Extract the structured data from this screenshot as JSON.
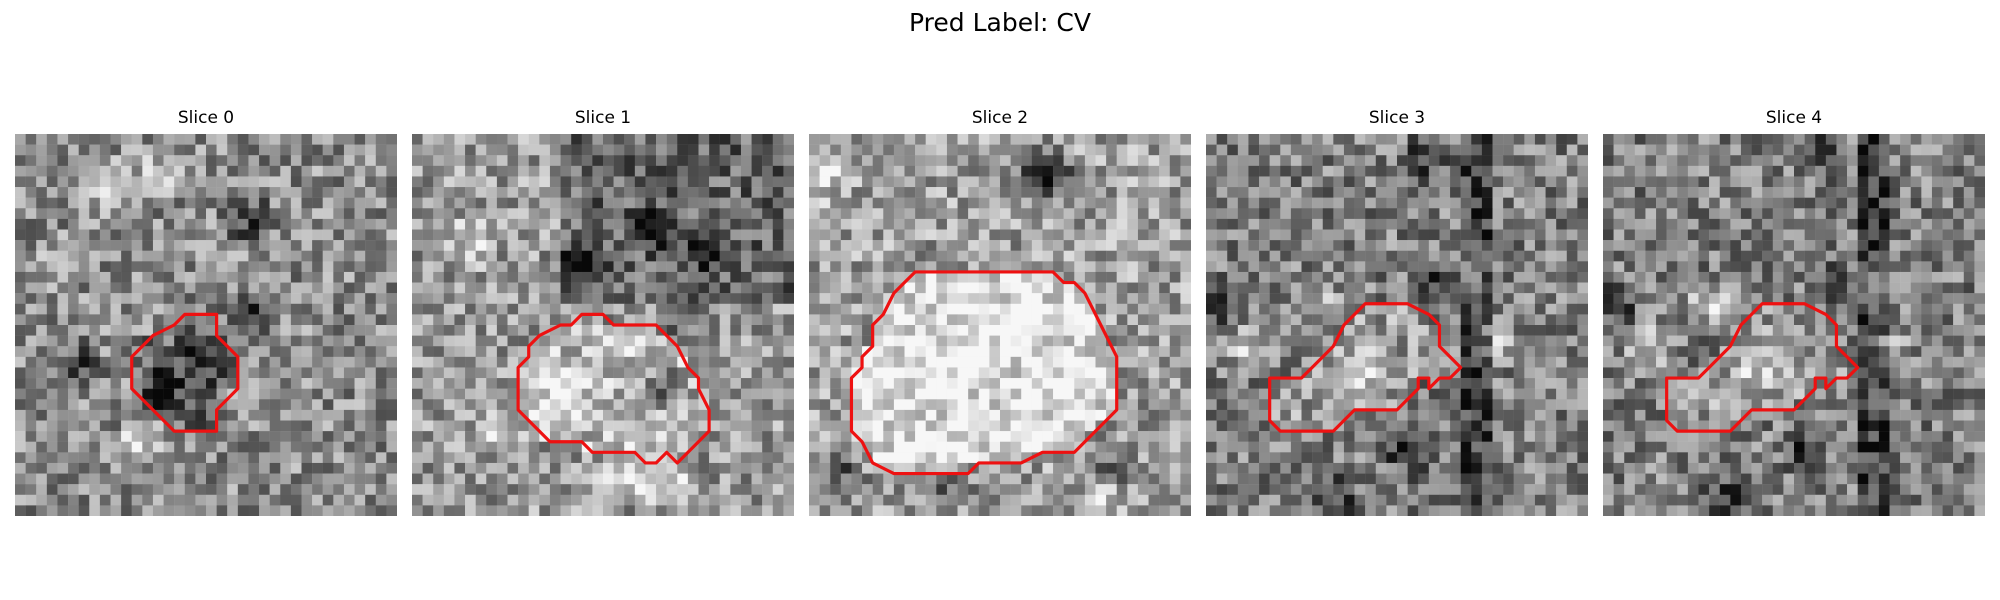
{
  "figure": {
    "title": "Pred Label: CV"
  },
  "slices": [
    {
      "title": "Slice 0",
      "contour": [
        [
          19,
          17
        ],
        [
          19,
          17
        ],
        [
          19,
          19
        ],
        [
          21,
          21
        ],
        [
          21,
          24
        ],
        [
          19,
          26
        ],
        [
          19,
          28
        ],
        [
          15,
          28
        ],
        [
          12,
          25
        ],
        [
          11,
          24
        ],
        [
          11,
          21
        ],
        [
          13,
          19
        ],
        [
          15,
          18
        ],
        [
          16,
          17
        ]
      ],
      "dark_spots": [
        [
          18,
          21
        ],
        [
          22,
          17
        ],
        [
          14,
          24
        ],
        [
          6,
          22
        ],
        [
          22,
          8
        ]
      ],
      "light_spots": [
        [
          9,
          5
        ],
        [
          5,
          12
        ],
        [
          22,
          24
        ],
        [
          12,
          29
        ],
        [
          14,
          4
        ]
      ],
      "base": 0.55
    },
    {
      "title": "Slice 1",
      "contour": [
        [
          18,
          17
        ],
        [
          19,
          18
        ],
        [
          23,
          18
        ],
        [
          25,
          20
        ],
        [
          26,
          22
        ],
        [
          27,
          23
        ],
        [
          27,
          24
        ],
        [
          28,
          26
        ],
        [
          28,
          28
        ],
        [
          27,
          29
        ],
        [
          26,
          30
        ],
        [
          25,
          31
        ],
        [
          24,
          30
        ],
        [
          23,
          31
        ],
        [
          22,
          31
        ],
        [
          21,
          30
        ],
        [
          17,
          30
        ],
        [
          16,
          29
        ],
        [
          13,
          29
        ],
        [
          12,
          28
        ],
        [
          11,
          27
        ],
        [
          10,
          26
        ],
        [
          10,
          24
        ],
        [
          10,
          22
        ],
        [
          11,
          21
        ],
        [
          11,
          20
        ],
        [
          12,
          19
        ],
        [
          14,
          18
        ],
        [
          15,
          18
        ],
        [
          16,
          17
        ],
        [
          17,
          17
        ]
      ],
      "dark_spots": [
        [
          23,
          9
        ],
        [
          25,
          17
        ],
        [
          24,
          24
        ],
        [
          28,
          11
        ],
        [
          16,
          12
        ]
      ],
      "light_spots": [
        [
          14,
          25
        ],
        [
          6,
          10
        ],
        [
          20,
          32
        ],
        [
          8,
          28
        ],
        [
          24,
          33
        ]
      ],
      "base": 0.6
    },
    {
      "title": "Slice 2",
      "contour": [
        [
          10,
          13
        ],
        [
          23,
          13
        ],
        [
          24,
          14
        ],
        [
          25,
          14
        ],
        [
          26,
          15
        ],
        [
          27,
          17
        ],
        [
          28,
          19
        ],
        [
          29,
          21
        ],
        [
          29,
          24
        ],
        [
          29,
          26
        ],
        [
          28,
          27
        ],
        [
          27,
          28
        ],
        [
          25,
          30
        ],
        [
          22,
          30
        ],
        [
          20,
          31
        ],
        [
          16,
          31
        ],
        [
          15,
          32
        ],
        [
          8,
          32
        ],
        [
          6,
          31
        ],
        [
          5,
          29
        ],
        [
          4,
          28
        ],
        [
          4,
          26
        ],
        [
          4,
          23
        ],
        [
          5,
          22
        ],
        [
          5,
          21
        ],
        [
          6,
          20
        ],
        [
          6,
          18
        ],
        [
          7,
          17
        ],
        [
          8,
          15
        ],
        [
          9,
          14
        ]
      ],
      "dark_spots": [
        [
          22,
          3
        ],
        [
          23,
          4
        ],
        [
          13,
          33
        ],
        [
          3,
          32
        ],
        [
          29,
          32
        ]
      ],
      "light_spots": [
        [
          16,
          21
        ],
        [
          12,
          23
        ],
        [
          20,
          18
        ],
        [
          1,
          4
        ],
        [
          28,
          34
        ]
      ],
      "base": 0.62
    },
    {
      "title": "Slice 3",
      "contour": [
        [
          15,
          16
        ],
        [
          19,
          16
        ],
        [
          21,
          17
        ],
        [
          22,
          18
        ],
        [
          22,
          20
        ],
        [
          23,
          21
        ],
        [
          24,
          22
        ],
        [
          23,
          23
        ],
        [
          22,
          23
        ],
        [
          21,
          24
        ],
        [
          21,
          23
        ],
        [
          20,
          23
        ],
        [
          20,
          24
        ],
        [
          19,
          25
        ],
        [
          18,
          26
        ],
        [
          16,
          26
        ],
        [
          15,
          26
        ],
        [
          14,
          26
        ],
        [
          13,
          27
        ],
        [
          12,
          28
        ],
        [
          7,
          28
        ],
        [
          6,
          27
        ],
        [
          6,
          26
        ],
        [
          6,
          24
        ],
        [
          6,
          23
        ],
        [
          7,
          23
        ],
        [
          9,
          23
        ],
        [
          10,
          22
        ],
        [
          11,
          21
        ],
        [
          12,
          20
        ],
        [
          13,
          18
        ],
        [
          14,
          17
        ]
      ],
      "dark_spots": [
        [
          21,
          2
        ],
        [
          22,
          14
        ],
        [
          1,
          16
        ],
        [
          12,
          34
        ],
        [
          19,
          30
        ]
      ],
      "light_spots": [
        [
          15,
          22
        ],
        [
          25,
          14
        ],
        [
          4,
          20
        ],
        [
          10,
          16
        ],
        [
          27,
          20
        ]
      ],
      "base": 0.5
    },
    {
      "title": "Slice 4",
      "contour": [
        [
          15,
          16
        ],
        [
          19,
          16
        ],
        [
          21,
          17
        ],
        [
          22,
          18
        ],
        [
          22,
          20
        ],
        [
          23,
          21
        ],
        [
          24,
          22
        ],
        [
          23,
          23
        ],
        [
          22,
          23
        ],
        [
          21,
          24
        ],
        [
          21,
          23
        ],
        [
          20,
          23
        ],
        [
          20,
          24
        ],
        [
          19,
          25
        ],
        [
          18,
          26
        ],
        [
          16,
          26
        ],
        [
          15,
          26
        ],
        [
          14,
          26
        ],
        [
          13,
          27
        ],
        [
          12,
          28
        ],
        [
          7,
          28
        ],
        [
          6,
          27
        ],
        [
          6,
          26
        ],
        [
          6,
          24
        ],
        [
          6,
          23
        ],
        [
          7,
          23
        ],
        [
          9,
          23
        ],
        [
          10,
          22
        ],
        [
          11,
          21
        ],
        [
          12,
          20
        ],
        [
          13,
          18
        ],
        [
          14,
          17
        ]
      ],
      "dark_spots": [
        [
          21,
          2
        ],
        [
          22,
          14
        ],
        [
          1,
          16
        ],
        [
          12,
          34
        ],
        [
          19,
          30
        ]
      ],
      "light_spots": [
        [
          15,
          22
        ],
        [
          25,
          14
        ],
        [
          4,
          20
        ],
        [
          10,
          16
        ],
        [
          27,
          20
        ]
      ],
      "base": 0.5
    }
  ],
  "style": {
    "contour_color": "#ee1111",
    "colormap": "gray"
  }
}
